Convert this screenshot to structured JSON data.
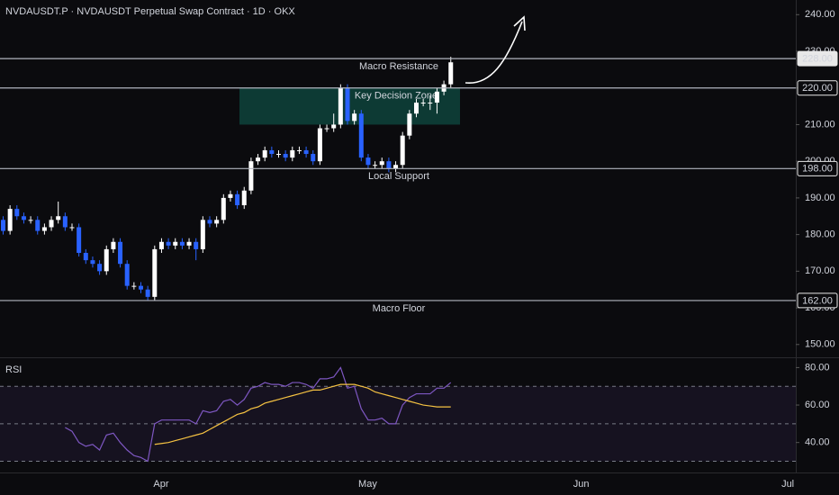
{
  "chart_data": {
    "type": "candlestick",
    "title": "NVDAUSDT.P · NVDAUSDT Perpetual Swap Contract · 1D · OKX",
    "categories": [
      null,
      null,
      null,
      null,
      null,
      null,
      null,
      null,
      null,
      null,
      null,
      null,
      null,
      null,
      null,
      null,
      null,
      null,
      null,
      null,
      null,
      null,
      null,
      "Apr",
      null,
      null,
      null,
      null,
      null,
      null,
      null,
      null,
      null,
      null,
      null,
      null,
      null,
      null,
      null,
      null,
      null,
      null,
      null,
      null,
      null,
      null,
      null,
      null,
      null,
      null,
      null,
      null,
      null,
      "May",
      null,
      null,
      null,
      null,
      null,
      null,
      null,
      null,
      null,
      null,
      null,
      null,
      null,
      null,
      null,
      null,
      null,
      null,
      null,
      null,
      null,
      null,
      null,
      null,
      null,
      null,
      null,
      null,
      null,
      null,
      "Jun",
      null,
      null,
      null,
      null,
      null,
      null,
      null,
      null,
      null,
      null,
      null,
      null,
      null,
      null,
      null,
      null,
      null,
      null,
      null,
      null,
      null,
      null,
      null,
      null,
      null,
      null,
      null,
      null,
      null,
      "Jul"
    ],
    "ohlc": {
      "open": [
        184,
        181,
        187,
        185,
        184,
        184,
        181,
        182,
        184,
        185,
        182,
        182,
        175,
        173,
        172,
        170,
        176,
        178,
        172,
        166,
        166,
        165,
        163,
        176,
        178,
        177,
        178,
        177,
        178,
        176,
        184,
        183,
        184,
        190,
        191,
        188,
        192,
        200,
        201,
        203,
        202,
        202,
        201,
        203,
        203,
        202,
        200,
        209,
        209,
        210,
        220,
        211,
        213,
        201,
        199,
        199,
        200,
        198,
        199,
        207,
        213,
        216,
        216,
        216,
        219,
        221,
        null,
        null,
        null,
        null,
        null,
        null,
        null,
        null,
        null,
        null,
        null,
        null,
        null,
        null,
        null,
        null,
        null,
        null,
        null,
        null,
        null,
        null,
        null,
        null,
        null,
        null,
        null,
        null,
        null,
        null,
        null,
        null,
        null,
        null,
        null,
        null,
        null,
        null,
        null,
        null,
        null,
        null,
        null,
        null,
        null,
        null,
        null,
        null,
        null
      ],
      "high": [
        185,
        188,
        188,
        186,
        185,
        185,
        183,
        185,
        189,
        186,
        183,
        183,
        176,
        174,
        173,
        177,
        179,
        179,
        173,
        167,
        167,
        166,
        177,
        179,
        179,
        179,
        179,
        179,
        179,
        185,
        185,
        185,
        191,
        192,
        192,
        193,
        201,
        202,
        204,
        204,
        203,
        203,
        204,
        204,
        204,
        203,
        210,
        210,
        213,
        221,
        221,
        214,
        214,
        202,
        200,
        201,
        201,
        200,
        208,
        214,
        217,
        217,
        218,
        220,
        222,
        228.5,
        null,
        null,
        null,
        null,
        null,
        null,
        null,
        null,
        null,
        null,
        null,
        null,
        null,
        null,
        null,
        null,
        null,
        null,
        null,
        null,
        null,
        null,
        null,
        null,
        null,
        null,
        null,
        null,
        null,
        null,
        null,
        null,
        null,
        null,
        null,
        null,
        null,
        null,
        null,
        null,
        null,
        null,
        null,
        null,
        null,
        null,
        null,
        null,
        null
      ],
      "low": [
        180,
        180,
        184,
        183,
        183,
        180,
        180,
        181,
        183,
        181,
        181,
        174,
        172,
        171,
        169,
        169,
        175,
        171,
        165,
        165,
        164,
        162,
        162,
        175,
        176,
        176,
        176,
        176,
        173,
        175,
        182,
        182,
        183,
        189,
        187,
        187,
        191,
        199,
        200,
        201,
        201,
        200,
        200,
        202,
        201,
        199,
        199,
        208,
        208,
        209,
        210,
        210,
        200,
        198,
        198,
        198,
        197,
        197,
        198,
        206,
        212,
        215,
        214,
        213,
        218,
        220,
        null,
        null,
        null,
        null,
        null,
        null,
        null,
        null,
        null,
        null,
        null,
        null,
        null,
        null,
        null,
        null,
        null,
        null,
        null,
        null,
        null,
        null,
        null,
        null,
        null,
        null,
        null,
        null,
        null,
        null,
        null,
        null,
        null,
        null,
        null,
        null,
        null,
        null,
        null,
        null,
        null,
        null,
        null,
        null,
        null,
        null,
        null,
        null,
        null
      ],
      "close": [
        181,
        187,
        185,
        184,
        184,
        181,
        182,
        184,
        185,
        182,
        182,
        175,
        173,
        172,
        170,
        176,
        178,
        172,
        166,
        166,
        165,
        163,
        176,
        178,
        177,
        178,
        177,
        178,
        176,
        184,
        183,
        184,
        190,
        191,
        188,
        192,
        200,
        201,
        203,
        202,
        202,
        201,
        203,
        203,
        202,
        200,
        209,
        209,
        210,
        220,
        211,
        213,
        201,
        199,
        199,
        200,
        198,
        199,
        207,
        213,
        216,
        216,
        216,
        219,
        221,
        227,
        null,
        null,
        null,
        null,
        null,
        null,
        null,
        null,
        null,
        null,
        null,
        null,
        null,
        null,
        null,
        null,
        null,
        null,
        null,
        null,
        null,
        null,
        null,
        null,
        null,
        null,
        null,
        null,
        null,
        null,
        null,
        null,
        null,
        null,
        null,
        null,
        null,
        null,
        null,
        null,
        null,
        null,
        null,
        null,
        null,
        null,
        null,
        null,
        null
      ],
      "up_color": "#ffffff",
      "down_color": "#2962ff"
    },
    "ylim": [
      147,
      244
    ],
    "yticks": [
      {
        "value": 150,
        "label": "150.00"
      },
      {
        "value": 160,
        "label": "160.00"
      },
      {
        "value": 170,
        "label": "170.00"
      },
      {
        "value": 180,
        "label": "180.00"
      },
      {
        "value": 190,
        "label": "190.00"
      },
      {
        "value": 200,
        "label": "200.00"
      },
      {
        "value": 210,
        "label": "210.00"
      },
      {
        "value": 220,
        "label": "220.00"
      },
      {
        "value": 230,
        "label": "230.00"
      },
      {
        "value": 240,
        "label": "240.00"
      }
    ],
    "levels": [
      {
        "value": 228,
        "label": "228.00",
        "note": "Macro Resistance",
        "highlight": true
      },
      {
        "value": 220,
        "label": "220.00"
      },
      {
        "value": 198,
        "label": "198.00",
        "note": "Local Support"
      },
      {
        "value": 162,
        "label": "162.00",
        "note": "Macro Floor"
      }
    ],
    "zone": {
      "low": 210,
      "high": 220,
      "label": "Key Decision Zone",
      "color": "#0d3a34"
    },
    "rsi": {
      "label": "RSI",
      "values": [
        null,
        null,
        null,
        null,
        null,
        null,
        null,
        null,
        null,
        48,
        46,
        40,
        38,
        39,
        36,
        44,
        45,
        40,
        36,
        33,
        32,
        30,
        50,
        52,
        52,
        52,
        52,
        52,
        50,
        57,
        56,
        57,
        62,
        63,
        60,
        63,
        69,
        70,
        72,
        71,
        71,
        70,
        72,
        72,
        71,
        69,
        74,
        74,
        75,
        80,
        69,
        70,
        58,
        52,
        52,
        53,
        50,
        50,
        60,
        64,
        66,
        66,
        66,
        69,
        69,
        72,
        null,
        null,
        null,
        null,
        null,
        null,
        null,
        null,
        null,
        null,
        null,
        null,
        null,
        null,
        null,
        null,
        null,
        null,
        null,
        null,
        null,
        null,
        null,
        null,
        null,
        null,
        null,
        null,
        null,
        null,
        null,
        null,
        null,
        null,
        null,
        null,
        null,
        null,
        null,
        null,
        null,
        null,
        null,
        null,
        null,
        null,
        null,
        null,
        null
      ],
      "color": "#7e57c2",
      "ma": [
        null,
        null,
        null,
        null,
        null,
        null,
        null,
        null,
        null,
        null,
        null,
        null,
        null,
        null,
        null,
        null,
        null,
        null,
        null,
        null,
        null,
        null,
        39,
        39.5,
        40,
        41,
        42,
        43,
        44,
        45,
        47,
        49,
        51,
        53,
        55,
        56,
        58,
        59,
        61,
        62,
        63,
        64,
        65,
        66,
        67,
        68,
        68,
        69,
        70,
        71,
        71,
        71,
        70,
        69,
        67,
        66,
        65,
        64,
        63,
        62,
        61,
        60,
        59.5,
        59,
        59,
        59,
        null,
        null,
        null,
        null,
        null,
        null,
        null,
        null,
        null,
        null,
        null,
        null,
        null,
        null,
        null,
        null,
        null,
        null,
        null,
        null,
        null,
        null,
        null,
        null,
        null,
        null,
        null,
        null,
        null,
        null,
        null,
        null,
        null,
        null,
        null,
        null,
        null,
        null,
        null,
        null,
        null,
        null,
        null,
        null,
        null,
        null,
        null,
        null,
        null
      ],
      "ma_color": "#f5c242",
      "ylim": [
        24,
        85
      ],
      "yticks": [
        {
          "value": 40,
          "label": "40.00"
        },
        {
          "value": 60,
          "label": "60.00"
        },
        {
          "value": 80,
          "label": "80.00"
        }
      ],
      "bands": [
        30,
        50,
        70
      ]
    }
  }
}
